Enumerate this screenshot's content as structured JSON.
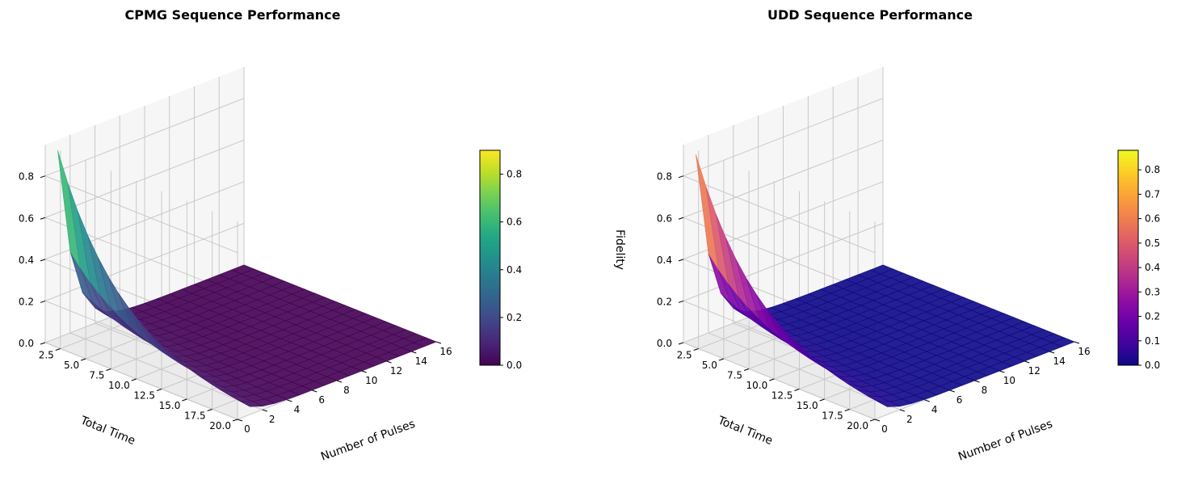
{
  "chart_data": [
    {
      "type": "surface3d",
      "title": "CPMG Sequence Performance",
      "xlabel": "Number of Pulses",
      "ylabel": "Total Time",
      "zlabel": "",
      "x_ticks": [
        "0",
        "2",
        "4",
        "6",
        "8",
        "10",
        "12",
        "14",
        "16"
      ],
      "y_ticks": [
        "2.5",
        "5.0",
        "7.5",
        "10.0",
        "12.5",
        "15.0",
        "17.5",
        "20.0"
      ],
      "z_ticks": [
        "0.0",
        "0.2",
        "0.4",
        "0.6",
        "0.8"
      ],
      "xlim": [
        0,
        16
      ],
      "ylim": [
        1,
        20
      ],
      "zlim": [
        0,
        0.95
      ],
      "colormap": "viridis",
      "colorbar_ticks": [
        "0.0",
        "0.2",
        "0.4",
        "0.6",
        "0.8"
      ],
      "colorbar_range": [
        0,
        0.9
      ],
      "surface": {
        "n_pulses": [
          1,
          2,
          3,
          4,
          5,
          6,
          7,
          8,
          9,
          10,
          11,
          12,
          13,
          14,
          15,
          16
        ],
        "total_time": [
          1,
          2,
          3,
          4,
          5,
          6,
          7,
          8,
          9,
          10,
          11,
          12,
          13,
          14,
          15,
          16,
          17,
          18,
          19,
          20
        ],
        "max_fidelity": 0.9,
        "note_shape": "fidelity high at small pulse count, drops sharply and decays with total time"
      }
    },
    {
      "type": "surface3d",
      "title": "UDD Sequence Performance",
      "xlabel": "Number of Pulses",
      "ylabel": "Total Time",
      "zlabel": "Fidelity",
      "x_ticks": [
        "0",
        "2",
        "4",
        "6",
        "8",
        "10",
        "12",
        "14",
        "16"
      ],
      "y_ticks": [
        "2.5",
        "5.0",
        "7.5",
        "10.0",
        "12.5",
        "15.0",
        "17.5",
        "20.0"
      ],
      "z_ticks": [
        "0.0",
        "0.2",
        "0.4",
        "0.6",
        "0.8"
      ],
      "xlim": [
        0,
        16
      ],
      "ylim": [
        1,
        20
      ],
      "zlim": [
        0,
        0.95
      ],
      "colormap": "plasma",
      "colorbar_ticks": [
        "0.0",
        "0.1",
        "0.2",
        "0.3",
        "0.4",
        "0.5",
        "0.6",
        "0.7",
        "0.8"
      ],
      "colorbar_range": [
        0,
        0.88
      ],
      "surface": {
        "n_pulses": [
          1,
          2,
          3,
          4,
          5,
          6,
          7,
          8,
          9,
          10,
          11,
          12,
          13,
          14,
          15,
          16
        ],
        "total_time": [
          1,
          2,
          3,
          4,
          5,
          6,
          7,
          8,
          9,
          10,
          11,
          12,
          13,
          14,
          15,
          16,
          17,
          18,
          19,
          20
        ],
        "max_fidelity": 0.88,
        "note_shape": "fidelity high at small pulse count, drops sharply and decays with total time"
      }
    }
  ]
}
